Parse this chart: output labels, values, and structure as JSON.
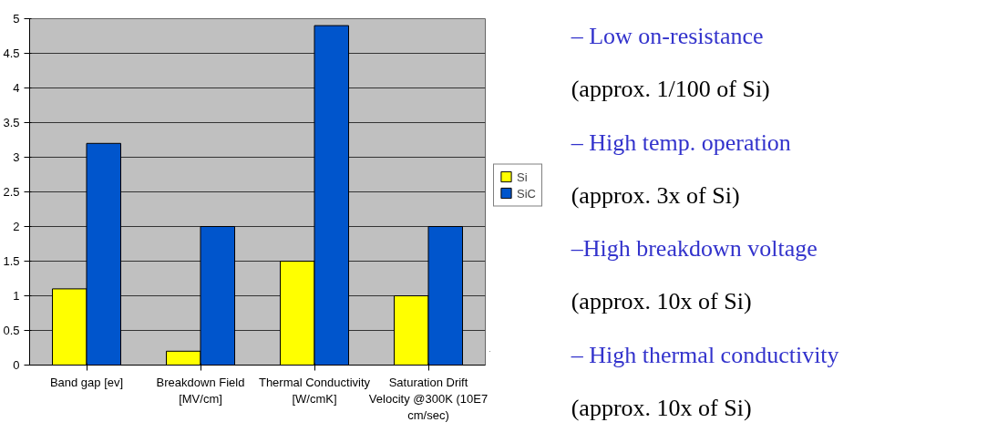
{
  "chart_data": [
    {
      "type": "bar",
      "categories": [
        "Band gap [ev]",
        "Breakdown Field [MV/cm]",
        "Thermal Conductivity [W/cmK]",
        "Saturation Drift Velocity @300K (10E7 cm/sec)"
      ],
      "series": [
        {
          "name": "Si",
          "color": "#ffff00",
          "values": [
            1.1,
            0.2,
            1.5,
            1.0
          ]
        },
        {
          "name": "SiC",
          "color": "#0055cc",
          "values": [
            3.2,
            2.0,
            4.9,
            2.0
          ]
        }
      ],
      "ylim": [
        0,
        5
      ],
      "yticks": [
        0,
        0.5,
        1,
        1.5,
        2,
        2.5,
        3,
        3.5,
        4,
        4.5,
        5
      ],
      "grid": "y",
      "legend": "right"
    },
    {
      "type": "other",
      "annotations": [
        "– Low on-resistance",
        "(approx. 1/100 of Si)",
        "– High temp. operation",
        "(approx. 3x of Si)",
        "–High breakdown voltage",
        "(approx. 10x  of Si)",
        "– High thermal conductivity",
        "(approx. 10x of Si)"
      ]
    }
  ]
}
